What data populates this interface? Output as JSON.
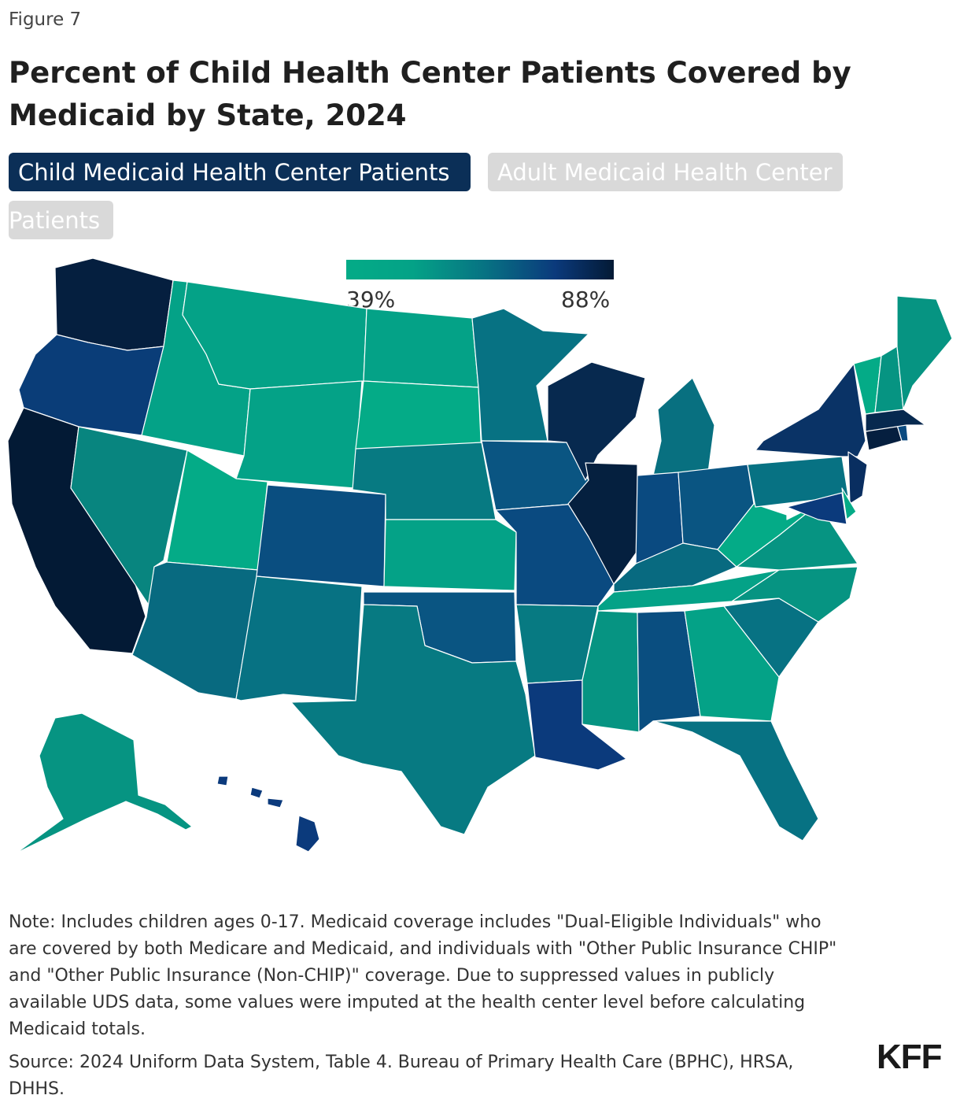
{
  "figure_label": "Figure 7",
  "title": "Percent of Child Health Center Patients Covered by Medicaid by State, 2024",
  "tabs": {
    "active": "Child Medicaid Health Center Patients",
    "inactive_line1": "Adult Medicaid Health Center",
    "inactive_line2": "Patients"
  },
  "legend": {
    "min_label": "39%",
    "max_label": "88%"
  },
  "colors": {
    "low": "#04ab87",
    "mid_low": "#04a287",
    "mid": "#077283",
    "mid_high": "#0b3a7c",
    "high": "#031a35",
    "tab_active": "#0b2f57",
    "tab_inactive": "#d9d9d9"
  },
  "map_data": {
    "type": "choropleth",
    "region": "United States",
    "scale_min_percent": 39,
    "scale_max_percent": 88,
    "states": [
      {
        "state": "WA",
        "color": "#051f3f"
      },
      {
        "state": "OR",
        "color": "#0a3d78"
      },
      {
        "state": "CA",
        "color": "#031a35"
      },
      {
        "state": "ID",
        "color": "#04a287"
      },
      {
        "state": "NV",
        "color": "#08857f"
      },
      {
        "state": "MT",
        "color": "#04a287"
      },
      {
        "state": "WY",
        "color": "#04a287"
      },
      {
        "state": "UT",
        "color": "#04ab87"
      },
      {
        "state": "AZ",
        "color": "#086a80"
      },
      {
        "state": "CO",
        "color": "#0a4e80"
      },
      {
        "state": "NM",
        "color": "#077283"
      },
      {
        "state": "ND",
        "color": "#04a287"
      },
      {
        "state": "SD",
        "color": "#04ab87"
      },
      {
        "state": "NE",
        "color": "#077a82"
      },
      {
        "state": "KS",
        "color": "#04a287"
      },
      {
        "state": "OK",
        "color": "#0a5582"
      },
      {
        "state": "TX",
        "color": "#077a82"
      },
      {
        "state": "MN",
        "color": "#077283"
      },
      {
        "state": "IA",
        "color": "#0a5582"
      },
      {
        "state": "MO",
        "color": "#0a4a80"
      },
      {
        "state": "AR",
        "color": "#077a82"
      },
      {
        "state": "LA",
        "color": "#0b3a7c"
      },
      {
        "state": "WI",
        "color": "#07294f"
      },
      {
        "state": "IL",
        "color": "#05203f"
      },
      {
        "state": "MI",
        "color": "#087080"
      },
      {
        "state": "IN",
        "color": "#0a4a80"
      },
      {
        "state": "OH",
        "color": "#0a5582"
      },
      {
        "state": "KY",
        "color": "#086a80"
      },
      {
        "state": "TN",
        "color": "#04a287"
      },
      {
        "state": "MS",
        "color": "#069482"
      },
      {
        "state": "AL",
        "color": "#0a4e80"
      },
      {
        "state": "GA",
        "color": "#04a287"
      },
      {
        "state": "FL",
        "color": "#077283"
      },
      {
        "state": "SC",
        "color": "#077283"
      },
      {
        "state": "NC",
        "color": "#069482"
      },
      {
        "state": "VA",
        "color": "#069482"
      },
      {
        "state": "WV",
        "color": "#04ab87"
      },
      {
        "state": "PA",
        "color": "#077283"
      },
      {
        "state": "NY",
        "color": "#0a3366"
      },
      {
        "state": "NJ",
        "color": "#092e60"
      },
      {
        "state": "DE",
        "color": "#04ab87"
      },
      {
        "state": "MD",
        "color": "#0b3a7c"
      },
      {
        "state": "CT",
        "color": "#051f3f"
      },
      {
        "state": "RI",
        "color": "#0a4a80"
      },
      {
        "state": "MA",
        "color": "#07294f"
      },
      {
        "state": "VT",
        "color": "#04ab87"
      },
      {
        "state": "NH",
        "color": "#069482"
      },
      {
        "state": "ME",
        "color": "#069482"
      },
      {
        "state": "AK",
        "color": "#069482"
      },
      {
        "state": "HI",
        "color": "#0b3a7c"
      }
    ]
  },
  "note": "Note: Includes children ages 0-17. Medicaid coverage includes \"Dual-Eligible Individuals\" who are covered by both Medicare and Medicaid, and individuals with \"Other Public Insurance CHIP\" and \"Other Public Insurance (Non-CHIP)\" coverage. Due to suppressed values in publicly available UDS data, some values were imputed at the health center level before calculating Medicaid totals.",
  "source": "Source: 2024 Uniform Data System, Table 4. Bureau of Primary Health Care (BPHC), HRSA, DHHS.",
  "logo": "KFF"
}
